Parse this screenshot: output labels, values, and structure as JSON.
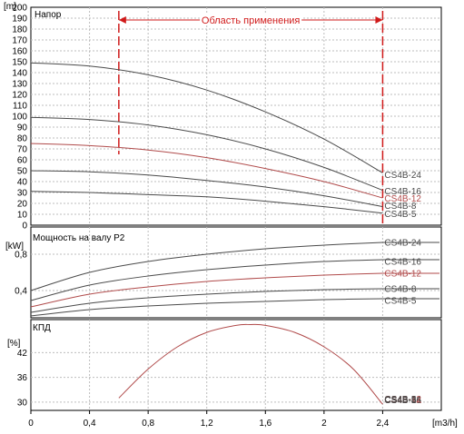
{
  "colors": {
    "black_curve": "#4a4a4a",
    "red_curve": "#b04a4a",
    "range_marker": "#d01a1a",
    "grid": "#bdbdbd"
  },
  "chart_data": {
    "type": "line",
    "x_unit_label": "[m3/h]",
    "x_ticks": [
      "0",
      "0,4",
      "0,8",
      "1,2",
      "1,6",
      "2",
      "2,4"
    ],
    "xlim": [
      0,
      2.8
    ],
    "range": {
      "label": "Область применения",
      "from": 0.6,
      "to": 2.4
    },
    "panels": [
      {
        "id": "head",
        "title": "Напор",
        "unit_label": "[m]",
        "ylim": [
          0,
          200
        ],
        "y_ticks": [
          "0",
          "10",
          "20",
          "30",
          "40",
          "50",
          "60",
          "70",
          "80",
          "90",
          "100",
          "110",
          "120",
          "130",
          "140",
          "150",
          "160",
          "170",
          "180",
          "190",
          "200"
        ],
        "series": [
          {
            "name": "CS4B-24",
            "color": "black",
            "x": [
              0,
              0.4,
              0.8,
              1.2,
              1.6,
              2.0,
              2.4
            ],
            "y": [
              149,
              146,
              138,
              124,
              104,
              79,
              48
            ]
          },
          {
            "name": "CS4B-16",
            "color": "black",
            "x": [
              0,
              0.4,
              0.8,
              1.2,
              1.6,
              2.0,
              2.4
            ],
            "y": [
              99,
              97,
              92,
              83,
              70,
              53,
              32
            ]
          },
          {
            "name": "CS4B-12",
            "color": "red",
            "x": [
              0,
              0.4,
              0.8,
              1.2,
              1.6,
              2.0,
              2.4
            ],
            "y": [
              75,
              73,
              69,
              62,
              52,
              40,
              25
            ]
          },
          {
            "name": "CS4B-8",
            "color": "black",
            "x": [
              0,
              0.4,
              0.8,
              1.2,
              1.6,
              2.0,
              2.4
            ],
            "y": [
              50,
              49,
              46,
              41,
              35,
              27,
              17
            ]
          },
          {
            "name": "CS4B-5",
            "color": "black",
            "x": [
              0,
              0.4,
              0.8,
              1.2,
              1.6,
              2.0,
              2.4
            ],
            "y": [
              31,
              30,
              28,
              26,
              22,
              17,
              11
            ]
          }
        ]
      },
      {
        "id": "power",
        "title": "Мощность на валу P2",
        "unit_label": "[kW]",
        "ylim": [
          0.1,
          1.1
        ],
        "y_ticks": [
          "0,4",
          "0,8"
        ],
        "y_tick_values": [
          0.4,
          0.8
        ],
        "series": [
          {
            "name": "CS4B-24",
            "color": "black",
            "x": [
              0,
              0.4,
              0.8,
              1.2,
              1.6,
              2.0,
              2.4
            ],
            "y": [
              0.4,
              0.6,
              0.72,
              0.8,
              0.86,
              0.9,
              0.93
            ]
          },
          {
            "name": "CS4B-16",
            "color": "black",
            "x": [
              0,
              0.4,
              0.8,
              1.2,
              1.6,
              2.0,
              2.4
            ],
            "y": [
              0.29,
              0.46,
              0.56,
              0.63,
              0.68,
              0.72,
              0.74
            ]
          },
          {
            "name": "CS4B-12",
            "color": "red",
            "x": [
              0,
              0.4,
              0.8,
              1.2,
              1.6,
              2.0,
              2.4
            ],
            "y": [
              0.22,
              0.36,
              0.44,
              0.5,
              0.54,
              0.57,
              0.59
            ]
          },
          {
            "name": "CS4B-8",
            "color": "black",
            "x": [
              0,
              0.4,
              0.8,
              1.2,
              1.6,
              2.0,
              2.4
            ],
            "y": [
              0.16,
              0.26,
              0.32,
              0.36,
              0.39,
              0.41,
              0.42
            ]
          },
          {
            "name": "CS4B-5",
            "color": "black",
            "x": [
              0,
              0.4,
              0.8,
              1.2,
              1.6,
              2.0,
              2.4
            ],
            "y": [
              0.12,
              0.19,
              0.23,
              0.26,
              0.28,
              0.3,
              0.31
            ]
          }
        ]
      },
      {
        "id": "efficiency",
        "title": "КПД",
        "unit_label": "[%]",
        "ylim": [
          28,
          50
        ],
        "y_ticks": [
          "30",
          "36",
          "42"
        ],
        "y_tick_values": [
          30,
          36,
          42
        ],
        "series": [
          {
            "name": "CS4B-5a",
            "color": "red",
            "x": [
              0.6,
              0.8,
              1.0,
              1.2,
              1.4,
              1.5,
              1.6,
              1.8,
              2.0,
              2.2,
              2.4
            ],
            "y": [
              31.0,
              38.0,
              43.4,
              46.9,
              48.6,
              48.8,
              48.6,
              46.9,
              43.4,
              38.0,
              29.5
            ]
          }
        ],
        "end_labels": [
          "CS4B-24",
          "CS4B-16",
          "CS4B-12",
          "CS4B-8",
          "CS4B-5"
        ]
      }
    ]
  }
}
